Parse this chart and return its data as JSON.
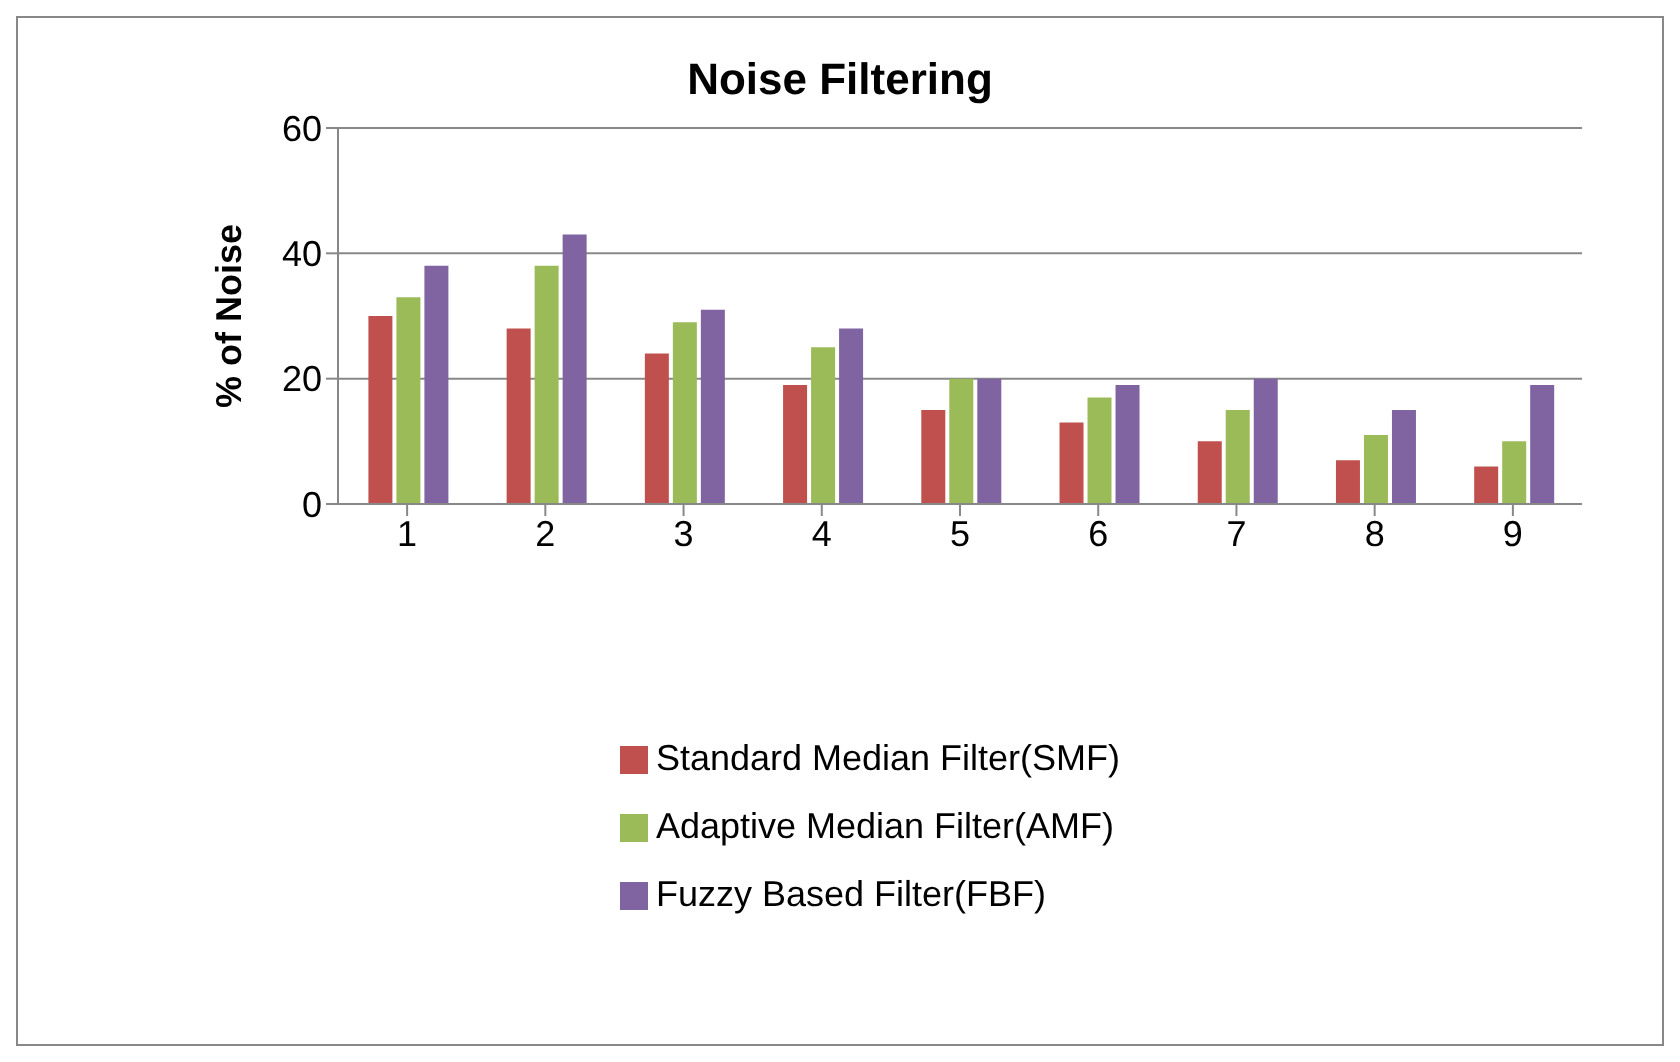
{
  "chart_data": {
    "type": "bar",
    "title": "Noise Filtering",
    "ylabel": "% of Noise",
    "categories": [
      "1",
      "2",
      "3",
      "4",
      "5",
      "6",
      "7",
      "8",
      "9"
    ],
    "series": [
      {
        "name": "Standard Median Filter(SMF)",
        "color": "#c0504d",
        "values": [
          30,
          28,
          24,
          19,
          15,
          13,
          10,
          7,
          6
        ]
      },
      {
        "name": "Adaptive Median Filter(AMF)",
        "color": "#9bbb59",
        "values": [
          33,
          38,
          29,
          25,
          20,
          17,
          15,
          11,
          10
        ]
      },
      {
        "name": "Fuzzy Based Filter(FBF)",
        "color": "#8064a2",
        "values": [
          38,
          43,
          31,
          28,
          20,
          19,
          20,
          15,
          19
        ]
      }
    ],
    "ylim": [
      0,
      60
    ],
    "yticks": [
      0,
      20,
      40,
      60
    ],
    "grid": "y",
    "legend": "bottom"
  }
}
